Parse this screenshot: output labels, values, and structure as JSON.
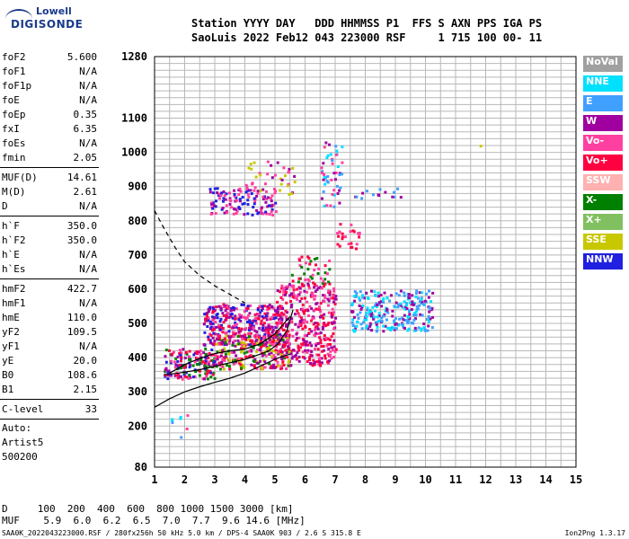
{
  "logo": {
    "line1": "Lowell",
    "line2": "DIGISONDE"
  },
  "header": {
    "line1": "Station YYYY DAY   DDD HHMMSS P1  FFS S AXN PPS IGA PS",
    "line2": "SaoLuis 2022 Feb12 043 223000 RSF     1 715 100 00- 11"
  },
  "params_block1": [
    {
      "k": "foF2",
      "v": "5.600"
    },
    {
      "k": "foF1",
      "v": "N/A"
    },
    {
      "k": "foF1p",
      "v": "N/A"
    },
    {
      "k": "foE",
      "v": "N/A"
    },
    {
      "k": "foEp",
      "v": "0.35"
    },
    {
      "k": "fxI",
      "v": "6.35"
    },
    {
      "k": "foEs",
      "v": "N/A"
    },
    {
      "k": "fmin",
      "v": "2.05"
    }
  ],
  "params_block2": [
    {
      "k": "MUF(D)",
      "v": "14.61"
    },
    {
      "k": "M(D)",
      "v": "2.61"
    },
    {
      "k": "D",
      "v": "N/A"
    }
  ],
  "params_block3": [
    {
      "k": "h`F",
      "v": "350.0"
    },
    {
      "k": "h`F2",
      "v": "350.0"
    },
    {
      "k": "h`E",
      "v": "N/A"
    },
    {
      "k": "h`Es",
      "v": "N/A"
    }
  ],
  "params_block4": [
    {
      "k": "hmF2",
      "v": "422.7"
    },
    {
      "k": "hmF1",
      "v": "N/A"
    },
    {
      "k": "hmE",
      "v": "110.0"
    },
    {
      "k": "yF2",
      "v": "109.5"
    },
    {
      "k": "yF1",
      "v": "N/A"
    },
    {
      "k": "yE",
      "v": "20.0"
    },
    {
      "k": "B0",
      "v": "108.6"
    },
    {
      "k": "B1",
      "v": "2.15"
    }
  ],
  "params_block5": [
    {
      "k": "C-level",
      "v": "33"
    }
  ],
  "auto_info": [
    "Auto:",
    "Artist5",
    "500200"
  ],
  "legend": [
    {
      "label": "NoVal",
      "color": "#a0a0a0"
    },
    {
      "label": "NNE",
      "color": "#00e0ff"
    },
    {
      "label": "E",
      "color": "#40a0ff"
    },
    {
      "label": "W",
      "color": "#a000a0"
    },
    {
      "label": "Vo-",
      "color": "#ff40a0"
    },
    {
      "label": "Vo+",
      "color": "#ff0040"
    },
    {
      "label": "SSW",
      "color": "#ffb0b0"
    },
    {
      "label": "X-",
      "color": "#008000"
    },
    {
      "label": "X+",
      "color": "#80c060"
    },
    {
      "label": "SSE",
      "color": "#c8c800"
    },
    {
      "label": "NNW",
      "color": "#2020e0"
    }
  ],
  "bottom": {
    "line1": "D     100  200  400  600  800 1000 1500 3000 [km]",
    "line2": "MUF    5.9  6.0  6.2  6.5  7.0  7.7  9.6 14.6 [MHz]"
  },
  "footer": "SAA0K_2022043223000.RSF / 280fx256h 50 kHz 5.0 km / DPS-4 SAA0K 903 / 2.6 S 315.8 E",
  "footer_right": "Ion2Png 1.3.17",
  "chart_data": {
    "type": "scatter",
    "title": "",
    "xlabel": "",
    "ylabel": "",
    "xlim": [
      1,
      15
    ],
    "ylim": [
      80,
      1280
    ],
    "x_ticks": [
      "1",
      "2",
      "3",
      "4",
      "5",
      "6",
      "7",
      "8",
      "9",
      "10",
      "11",
      "12",
      "13",
      "14",
      "15"
    ],
    "y_ticks": [
      {
        "value": 80,
        "label": "80"
      },
      {
        "value": 200,
        "label": "200"
      },
      {
        "value": 300,
        "label": "300"
      },
      {
        "value": 400,
        "label": "400"
      },
      {
        "value": 500,
        "label": "500"
      },
      {
        "value": 600,
        "label": "600"
      },
      {
        "value": 700,
        "label": "700"
      },
      {
        "value": 800,
        "label": "800"
      },
      {
        "value": 900,
        "label": "900"
      },
      {
        "value": 1000,
        "label": "1000"
      },
      {
        "value": 1100,
        "label": "1100"
      },
      {
        "value": 1280,
        "label": "1280"
      }
    ],
    "grid": true,
    "series": [
      {
        "type": "line",
        "style": "solid",
        "color": "#000000",
        "points": [
          [
            1,
            255
          ],
          [
            1.5,
            280
          ],
          [
            2,
            300
          ],
          [
            2.5,
            315
          ],
          [
            3,
            328
          ],
          [
            3.5,
            340
          ],
          [
            4,
            355
          ],
          [
            4.5,
            375
          ],
          [
            5,
            395
          ],
          [
            5.3,
            405
          ],
          [
            5.5,
            410
          ]
        ]
      },
      {
        "type": "line",
        "style": "solid",
        "color": "#000000",
        "points": [
          [
            1.3,
            350
          ],
          [
            1.8,
            355
          ],
          [
            2.5,
            365
          ],
          [
            3,
            375
          ],
          [
            3.5,
            385
          ],
          [
            4,
            395
          ],
          [
            4.5,
            410
          ],
          [
            4.8,
            420
          ],
          [
            5.1,
            440
          ],
          [
            5.4,
            480
          ],
          [
            5.6,
            540
          ]
        ]
      },
      {
        "type": "line",
        "style": "dashed",
        "color": "#000000",
        "points": [
          [
            1,
            830
          ],
          [
            1.3,
            780
          ],
          [
            1.7,
            720
          ],
          [
            2,
            680
          ],
          [
            2.5,
            640
          ],
          [
            3,
            610
          ],
          [
            3.5,
            585
          ],
          [
            4,
            560
          ]
        ]
      },
      {
        "type": "line",
        "style": "solid",
        "color": "#000000",
        "points": [
          [
            1.5,
            355
          ],
          [
            2,
            380
          ],
          [
            2.5,
            398
          ],
          [
            3,
            412
          ],
          [
            3.5,
            420
          ],
          [
            4,
            425
          ],
          [
            4.5,
            440
          ],
          [
            5,
            470
          ],
          [
            5.5,
            520
          ]
        ]
      }
    ],
    "echo_regions": [
      {
        "x": [
          1.3,
          3.0
        ],
        "y": [
          340,
          430
        ],
        "colors": [
          "#ff0040",
          "#a000a0",
          "#008000",
          "#ff40a0",
          "#2020e0"
        ],
        "n": 180
      },
      {
        "x": [
          2.6,
          5.2
        ],
        "y": [
          440,
          560
        ],
        "colors": [
          "#a000a0",
          "#2020e0",
          "#ff40a0",
          "#ff0040"
        ],
        "n": 360
      },
      {
        "x": [
          3.0,
          5.5
        ],
        "y": [
          370,
          470
        ],
        "colors": [
          "#ff0040",
          "#008000",
          "#a000a0",
          "#ff40a0",
          "#c8c800"
        ],
        "n": 280
      },
      {
        "x": [
          5.0,
          7.0
        ],
        "y": [
          380,
          620
        ],
        "colors": [
          "#ff0040",
          "#ff40a0",
          "#a000a0"
        ],
        "n": 380
      },
      {
        "x": [
          5.5,
          6.8
        ],
        "y": [
          620,
          700
        ],
        "colors": [
          "#ff0040",
          "#008000",
          "#ff40a0"
        ],
        "n": 40
      },
      {
        "x": [
          7.5,
          10.2
        ],
        "y": [
          480,
          600
        ],
        "colors": [
          "#40a0ff",
          "#00e0ff",
          "#a000a0"
        ],
        "n": 260
      },
      {
        "x": [
          2.8,
          5.0
        ],
        "y": [
          820,
          900
        ],
        "colors": [
          "#a000a0",
          "#2020e0",
          "#ff40a0"
        ],
        "n": 120
      },
      {
        "x": [
          4.0,
          5.7
        ],
        "y": [
          880,
          980
        ],
        "colors": [
          "#a000a0",
          "#ff40a0",
          "#c8c800"
        ],
        "n": 40
      },
      {
        "x": [
          6.5,
          7.2
        ],
        "y": [
          840,
          1040
        ],
        "colors": [
          "#a000a0",
          "#ff40a0",
          "#00e0ff",
          "#40a0ff"
        ],
        "n": 50
      },
      {
        "x": [
          7.6,
          9.2
        ],
        "y": [
          860,
          900
        ],
        "colors": [
          "#40a0ff",
          "#a000a0"
        ],
        "n": 15
      },
      {
        "x": [
          7.0,
          7.8
        ],
        "y": [
          720,
          800
        ],
        "colors": [
          "#ff40a0",
          "#ff0040"
        ],
        "n": 25
      },
      {
        "x": [
          1.2,
          2.2
        ],
        "y": [
          150,
          240
        ],
        "colors": [
          "#40a0ff",
          "#ff40a0",
          "#00e0ff"
        ],
        "n": 8
      },
      {
        "x": [
          11.6,
          11.8
        ],
        "y": [
          1010,
          1025
        ],
        "colors": [
          "#c8c800"
        ],
        "n": 1
      }
    ]
  }
}
